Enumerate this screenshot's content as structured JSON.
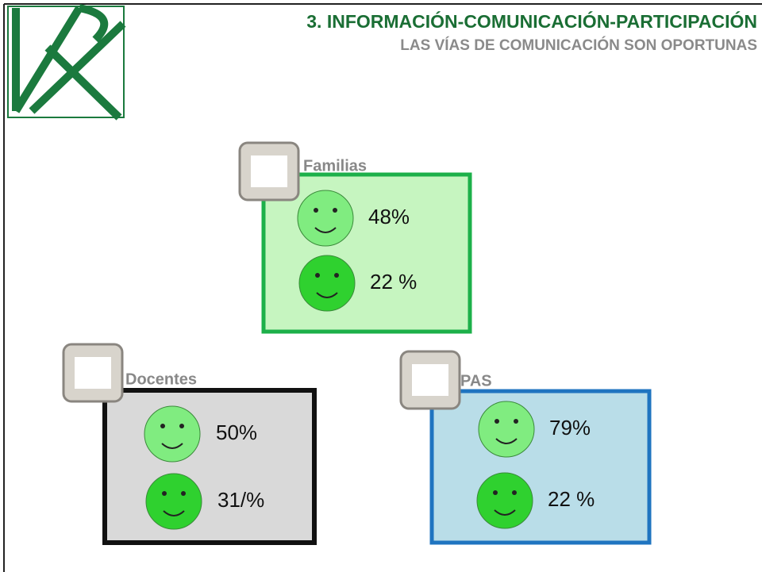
{
  "header": {
    "title": "3. INFORMACIÓN-COMUNICACIÓN-PARTICIPACIÓN",
    "subtitle": "LAS VÍAS DE COMUNICACIÓN SON OPORTUNAS"
  },
  "groups": [
    {
      "label": "Familias",
      "items": [
        "48%",
        "22 %"
      ]
    },
    {
      "label": "Docentes",
      "items": [
        "50%",
        "31/%"
      ]
    },
    {
      "label": "PAS",
      "items": [
        "79%",
        "22 %"
      ]
    }
  ]
}
